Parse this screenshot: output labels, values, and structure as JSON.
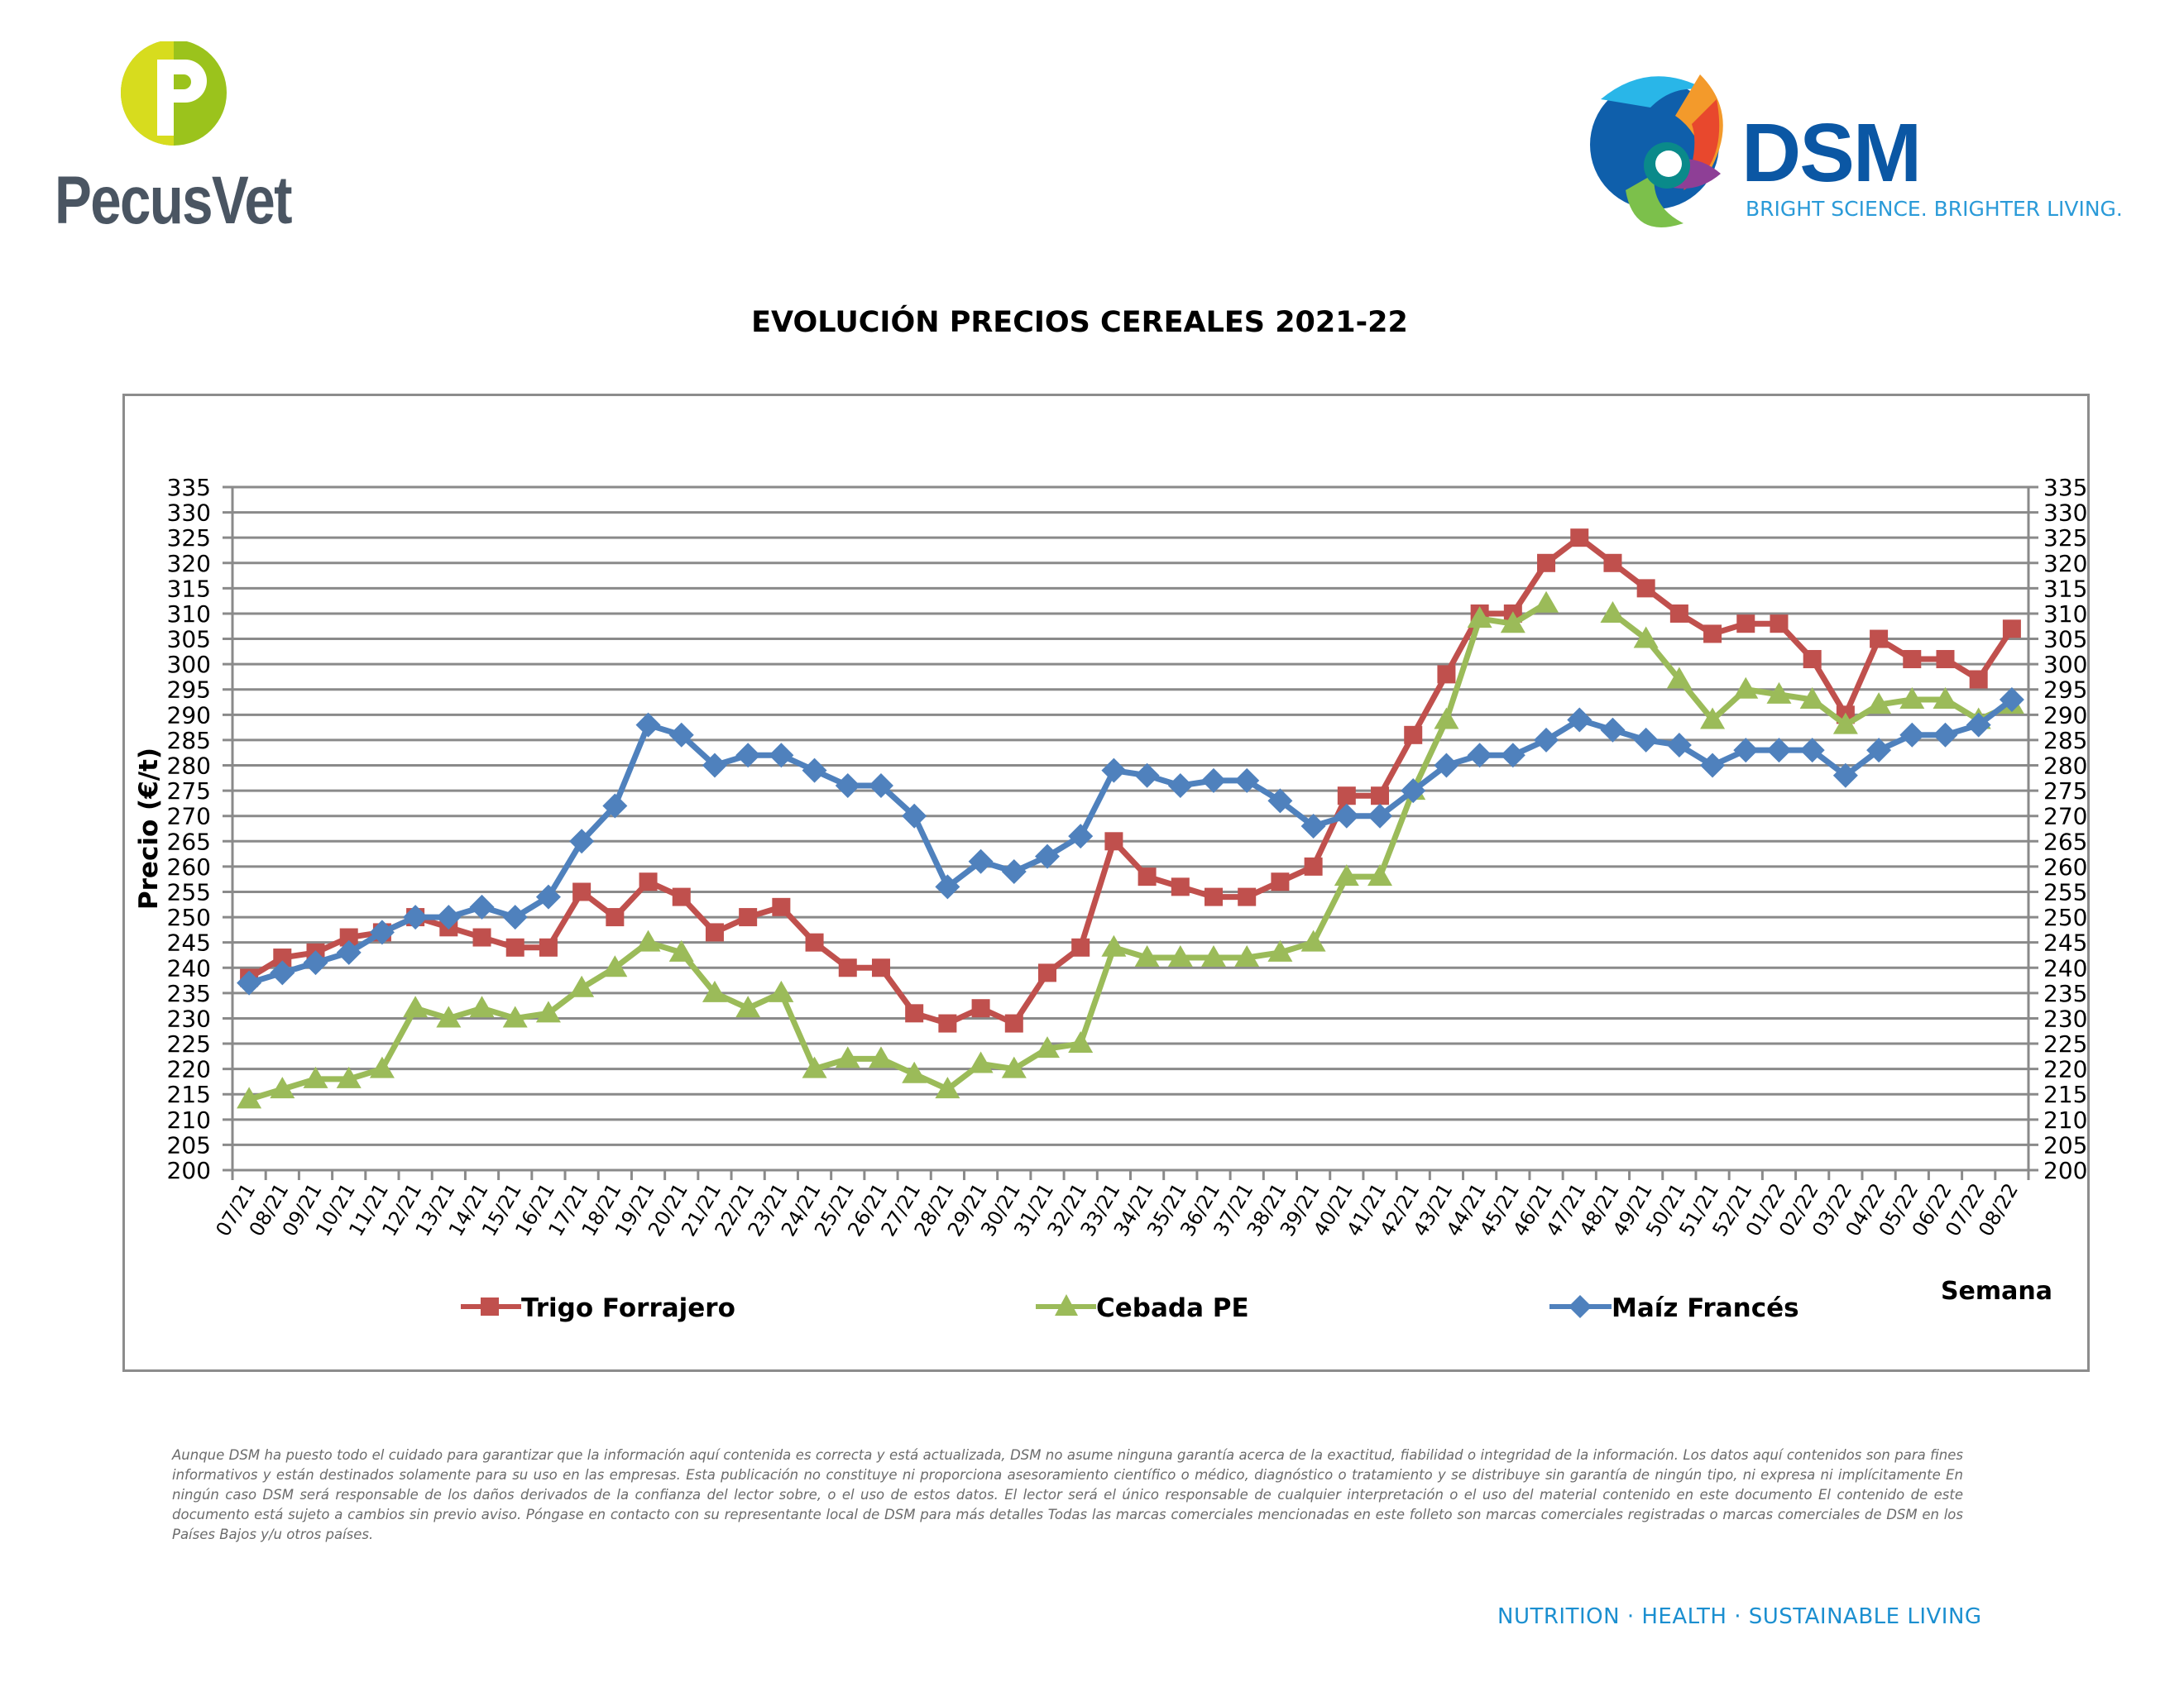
{
  "header": {
    "left_logo_text": "PecusVet",
    "right_logo_text": "DSM",
    "right_logo_tagline": "BRIGHT SCIENCE. BRIGHTER LIVING."
  },
  "disclaimer": "Aunque DSM ha puesto todo el cuidado para garantizar que la información aquí contenida es correcta y está actualizada, DSM no asume ninguna garantía acerca de la exactitud, fiabilidad o integridad de la información. Los datos aquí contenidos son para fines informativos y están destinados solamente para su uso en las empresas. Esta publicación no constituye ni proporciona asesoramiento científico o médico, diagnóstico o tratamiento y se distribuye sin garantía de ningún tipo, ni expresa ni implícitamente En ningún caso DSM será responsable de los daños derivados de la confianza del lector sobre, o el uso de estos datos. El lector será el único responsable de cualquier interpretación o el uso del material contenido en este documento El contenido de este documento está sujeto a cambios sin previo aviso. Póngase en contacto con su representante local de DSM para más detalles Todas las marcas comerciales mencionadas en este folleto son marcas comerciales registradas o marcas comerciales de DSM en los Países Bajos y/u otros países.",
  "footer": "NUTRITION · HEALTH · SUSTAINABLE LIVING",
  "chart_data": {
    "type": "line",
    "title": "EVOLUCIÓN PRECIOS CEREALES 2021-22",
    "xlabel": "Semana",
    "ylabel": "Precio (€/t)",
    "ylim": [
      200,
      335
    ],
    "ytick_step": 5,
    "secondary_y_axis": true,
    "grid": "horizontal",
    "legend_position": "bottom",
    "categories": [
      "07/21",
      "08/21",
      "09/21",
      "10/21",
      "11/21",
      "12/21",
      "13/21",
      "14/21",
      "15/21",
      "16/21",
      "17/21",
      "18/21",
      "19/21",
      "20/21",
      "21/21",
      "22/21",
      "23/21",
      "24/21",
      "25/21",
      "26/21",
      "27/21",
      "28/21",
      "29/21",
      "30/21",
      "31/21",
      "32/21",
      "33/21",
      "34/21",
      "35/21",
      "36/21",
      "37/21",
      "38/21",
      "39/21",
      "40/21",
      "41/21",
      "42/21",
      "43/21",
      "44/21",
      "45/21",
      "46/21",
      "47/21",
      "48/21",
      "49/21",
      "50/21",
      "51/21",
      "52/21",
      "01/22",
      "02/22",
      "03/22",
      "04/22",
      "05/22",
      "06/22",
      "07/22",
      "08/22"
    ],
    "series": [
      {
        "name": "Trigo Forrajero",
        "color": "#c0504d",
        "marker": "square",
        "values": [
          238,
          242,
          243,
          246,
          247,
          250,
          248,
          246,
          244,
          244,
          255,
          250,
          257,
          254,
          247,
          250,
          252,
          245,
          240,
          240,
          231,
          229,
          232,
          229,
          239,
          244,
          265,
          258,
          256,
          254,
          254,
          257,
          260,
          274,
          274,
          286,
          298,
          310,
          310,
          320,
          325,
          320,
          315,
          310,
          306,
          308,
          308,
          301,
          290,
          305,
          301,
          301,
          297,
          307
        ]
      },
      {
        "name": "Cebada PE",
        "color": "#9bbb59",
        "marker": "triangle",
        "values": [
          214,
          216,
          218,
          218,
          220,
          232,
          230,
          232,
          230,
          231,
          236,
          240,
          245,
          243,
          235,
          232,
          235,
          220,
          222,
          222,
          219,
          216,
          221,
          220,
          224,
          225,
          244,
          242,
          242,
          242,
          242,
          243,
          245,
          258,
          258,
          275,
          289,
          309,
          308,
          312,
          null,
          310,
          305,
          297,
          289,
          295,
          294,
          293,
          288,
          292,
          293,
          293,
          289,
          292
        ]
      },
      {
        "name": "Maíz Francés",
        "color": "#4f81bd",
        "marker": "diamond",
        "values": [
          237,
          239,
          241,
          243,
          247,
          250,
          250,
          252,
          250,
          254,
          265,
          272,
          288,
          286,
          280,
          282,
          282,
          279,
          276,
          276,
          270,
          256,
          261,
          259,
          262,
          266,
          279,
          278,
          276,
          277,
          277,
          273,
          268,
          270,
          270,
          275,
          280,
          282,
          282,
          285,
          289,
          287,
          285,
          284,
          280,
          283,
          283,
          283,
          278,
          283,
          286,
          286,
          288,
          293
        ]
      }
    ]
  }
}
